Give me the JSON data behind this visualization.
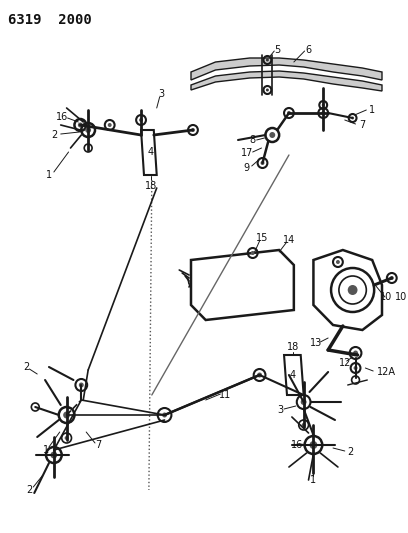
{
  "title": "6319  2000",
  "bg_color": "#ffffff",
  "fig_width": 4.08,
  "fig_height": 5.33,
  "dpi": 100,
  "line_color": "#1a1a1a",
  "label_color": "#111111",
  "label_fontsize": 7,
  "title_fontsize": 10
}
